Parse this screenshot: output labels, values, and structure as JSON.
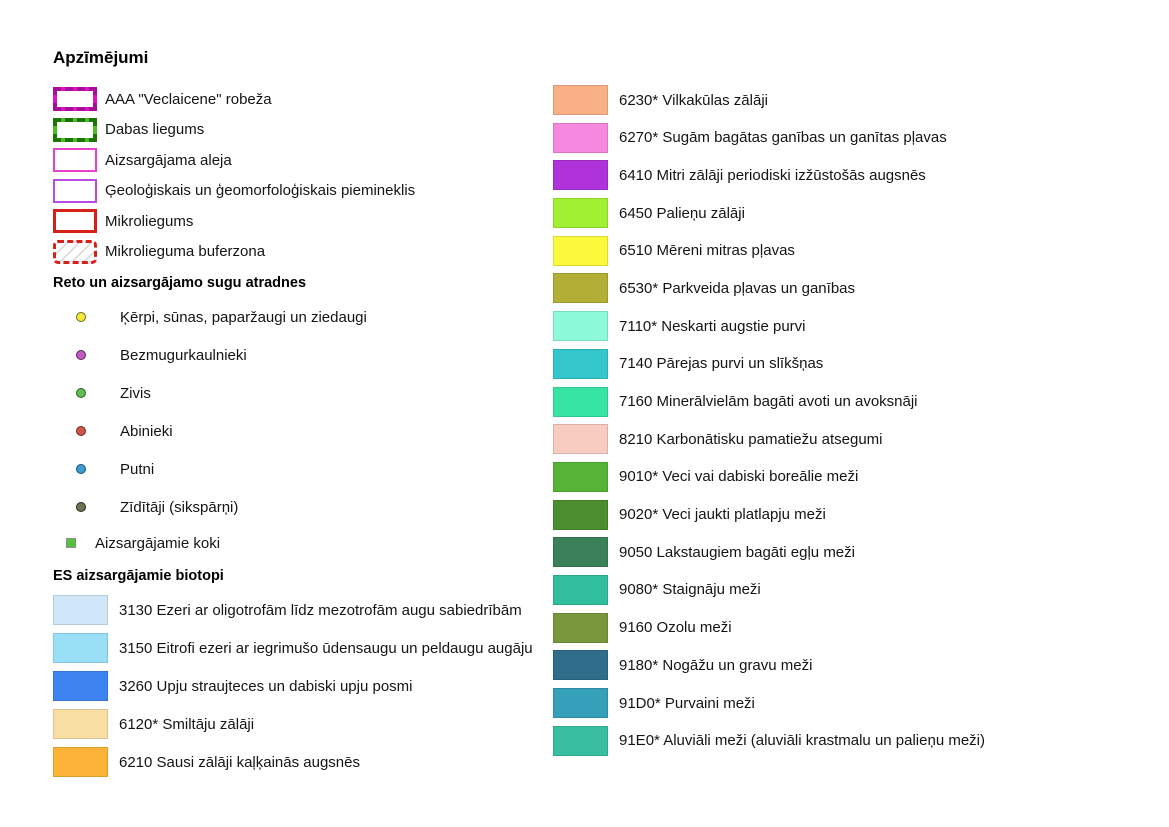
{
  "title": "Apzīmējumi",
  "boundaries": {
    "items": [
      {
        "label": "AAA \"Veclaicene\" robeža",
        "border_color": "#de12c4",
        "border_width": 4,
        "border_style": "solid",
        "overlay_dash_color": "#a50d97",
        "rounded": false,
        "hatched": false
      },
      {
        "label": "Dabas liegums",
        "border_color": "#4cbe22",
        "border_width": 4,
        "border_style": "solid",
        "overlay_dash_color": "#1c7500",
        "rounded": false,
        "hatched": false
      },
      {
        "label": "Aizsargājama aleja",
        "border_color": "#e840c6",
        "border_width": 2,
        "border_style": "solid",
        "rounded": false,
        "hatched": false
      },
      {
        "label": "Ģeoloģiskais un ģeomorfoloģiskais piemineklis",
        "border_color": "#ba4be2",
        "border_width": 2,
        "border_style": "solid",
        "rounded": false,
        "hatched": false
      },
      {
        "label": "Mikroliegums",
        "border_color": "#d6211a",
        "border_width": 3,
        "border_style": "solid",
        "rounded": false,
        "hatched": false
      },
      {
        "label": "Mikrolieguma buferzona",
        "border_color": "#d6211a",
        "border_width": 3,
        "border_style": "dashed",
        "rounded": true,
        "hatched": true
      }
    ]
  },
  "species": {
    "heading": "Reto un aizsargājamo sugu atradnes",
    "items": [
      {
        "label": "Ķērpi, sūnas, paparžaugi un ziedaugi",
        "marker": "circle",
        "fill": "#f2e93c",
        "stroke": "#6c6b1e"
      },
      {
        "label": "Bezmugurkaulnieki",
        "marker": "circle",
        "fill": "#c05ac3",
        "stroke": "#59265b"
      },
      {
        "label": "Zivis",
        "marker": "circle",
        "fill": "#5fbe52",
        "stroke": "#28641f"
      },
      {
        "label": "Abinieki",
        "marker": "circle",
        "fill": "#c9574d",
        "stroke": "#7e251c"
      },
      {
        "label": "Putni",
        "marker": "circle",
        "fill": "#3c9cce",
        "stroke": "#1c4f74"
      },
      {
        "label": "Zīdītāji (sikspārņi)",
        "marker": "circle",
        "fill": "#6f7250",
        "stroke": "#26271a"
      },
      {
        "label": "Aizsargājamie koki",
        "marker": "square",
        "fill": "#54c23a",
        "stroke": "#8c8c8c"
      }
    ]
  },
  "biotopes": {
    "heading": "ES aizsargājamie biotopi",
    "left": [
      {
        "label": "3130 Ezeri ar oligotrofām līdz mezotrofām augu sabiedrībām",
        "color": "#cfe7f8"
      },
      {
        "label": "3150 Eitrofi ezeri ar iegrimušo ūdensaugu un peldaugu augāju",
        "color": "#99e0f7"
      },
      {
        "label": "3260 Upju straujteces un dabiski upju posmi",
        "color": "#3c83f0"
      },
      {
        "label": "6120* Smiltāju zālāji",
        "color": "#fadfa5"
      },
      {
        "label": "6210 Sausi zālāji kaļķainās augsnēs",
        "color": "#fbb437"
      }
    ],
    "right": [
      {
        "label": "6230* Vilkakūlas zālāji",
        "color": "#f9b087"
      },
      {
        "label": "6270* Sugām bagātas ganības un ganītas pļavas",
        "color": "#f788df"
      },
      {
        "label": "6410 Mitri zālāji periodiski izžūstošās augsnēs",
        "color": "#b032db"
      },
      {
        "label": "6450 Palieņu zālāji",
        "color": "#a2f033"
      },
      {
        "label": "6510 Mēreni mitras pļavas",
        "color": "#fbf93b"
      },
      {
        "label": "6530* Parkveida pļavas un ganības",
        "color": "#b3af36"
      },
      {
        "label": "7110* Neskarti augstie purvi",
        "color": "#8dfbda"
      },
      {
        "label": "7140 Pārejas purvi un slīkšņas",
        "color": "#33c7cb"
      },
      {
        "label": "7160 Minerālvielām bagāti avoti un avoksnāji",
        "color": "#37e4a3"
      },
      {
        "label": "8210 Karbonātisku pamatiežu atsegumi",
        "color": "#f8ccc1"
      },
      {
        "label": "9010* Veci vai dabiski boreālie meži",
        "color": "#56b336"
      },
      {
        "label": "9020* Veci jaukti platlapju meži",
        "color": "#4b8e2f"
      },
      {
        "label": "9050 Lakstaugiem bagāti egļu meži",
        "color": "#3a8159"
      },
      {
        "label": "9080* Staignāju meži",
        "color": "#31be9d"
      },
      {
        "label": "9160 Ozolu meži",
        "color": "#79983b"
      },
      {
        "label": "9180* Nogāžu un gravu meži",
        "color": "#306d8b"
      },
      {
        "label": "91D0* Purvaini meži",
        "color": "#34a0b9"
      },
      {
        "label": "91E0* Aluviāli meži (aluviāli krastmalu un palieņu meži)",
        "color": "#39bfa0"
      }
    ]
  }
}
